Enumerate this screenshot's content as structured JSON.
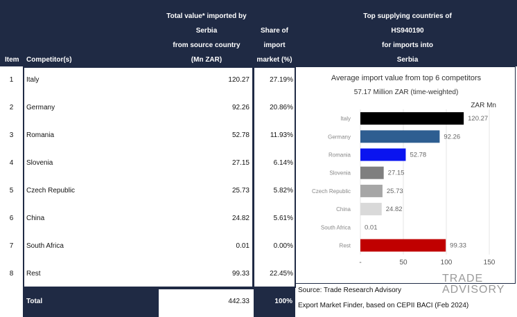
{
  "header": {
    "item": "Item",
    "competitor": "Competitor(s)",
    "total_value_lines": [
      "Total value* imported by",
      "Serbia",
      "from source country",
      "(Mn ZAR)"
    ],
    "share_lines": [
      "Share of",
      "import",
      "market (%)"
    ],
    "top_lines": [
      "Top supplying countries of",
      "HS940190",
      "for imports into",
      "Serbia"
    ]
  },
  "rows": [
    {
      "item": "1",
      "name": "Italy",
      "value": "120.27",
      "share": "27.19%"
    },
    {
      "item": "2",
      "name": "Germany",
      "value": "92.26",
      "share": "20.86%"
    },
    {
      "item": "3",
      "name": "Romania",
      "value": "52.78",
      "share": "11.93%"
    },
    {
      "item": "4",
      "name": "Slovenia",
      "value": "27.15",
      "share": "6.14%"
    },
    {
      "item": "5",
      "name": "Czech Republic",
      "value": "25.73",
      "share": "5.82%"
    },
    {
      "item": "6",
      "name": "China",
      "value": "24.82",
      "share": "5.61%"
    },
    {
      "item": "7",
      "name": "South Africa",
      "value": "0.01",
      "share": "0.00%"
    },
    {
      "item": "8",
      "name": "Rest",
      "value": "99.33",
      "share": "22.45%"
    }
  ],
  "total": {
    "label": "Total",
    "value": "442.33",
    "share": "100%"
  },
  "source": {
    "line1": "Source: Trade Research Advisory",
    "line2": "Export Market Finder, based on CEPII BACI (Feb 2024)"
  },
  "logo": {
    "line1": "TRADE",
    "line2": "ADVISORY"
  },
  "colors": {
    "navy": "#1f2a44"
  },
  "chart_data": {
    "type": "bar",
    "orientation": "horizontal",
    "title": "Average import value from top 6 competitors",
    "subtitle": "57.17 Million ZAR (time-weighted)",
    "unit_label": "ZAR Mn",
    "categories": [
      "Italy",
      "Germany",
      "Romania",
      "Slovenia",
      "Czech Republic",
      "China",
      "South Africa",
      "Rest"
    ],
    "values": [
      120.27,
      92.26,
      52.78,
      27.15,
      25.73,
      24.82,
      0.01,
      99.33
    ],
    "value_labels": [
      "120.27",
      "92.26",
      "52.78",
      "27.15",
      "25.73",
      "24.82",
      "0.01",
      "99.33"
    ],
    "colors": [
      "#000000",
      "#2e5e91",
      "#0a14f0",
      "#7f7f7f",
      "#a6a6a6",
      "#d9d9d9",
      "#ffffff",
      "#c00000"
    ],
    "xlim": [
      0,
      150
    ],
    "xticks": [
      "-",
      "50",
      "100",
      "150"
    ],
    "grid": "vertical"
  }
}
